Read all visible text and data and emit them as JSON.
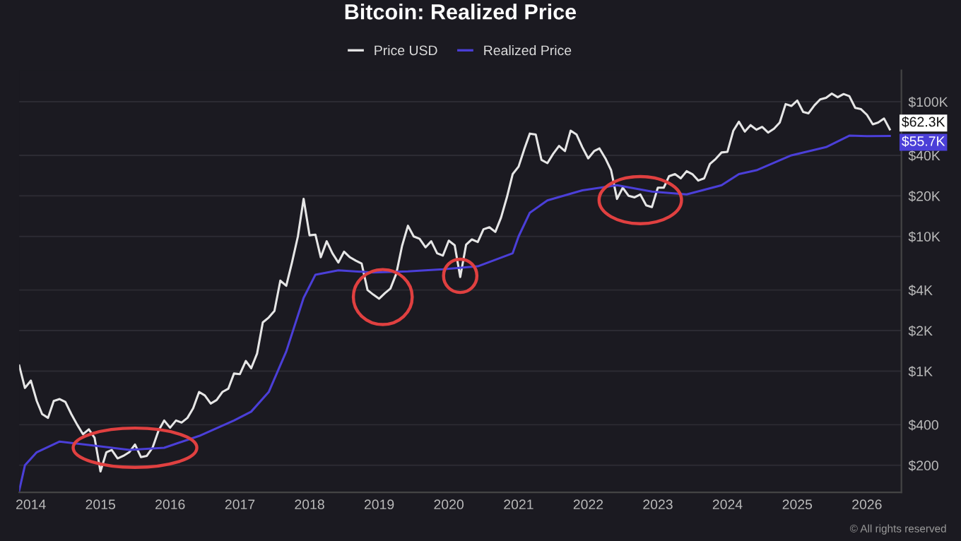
{
  "chart_data": {
    "type": "line",
    "title": "Bitcoin: Realized Price",
    "x": [
      "2013-11",
      "2013-12",
      "2014-01",
      "2014-02",
      "2014-03",
      "2014-04",
      "2014-05",
      "2014-06",
      "2014-07",
      "2014-08",
      "2014-09",
      "2014-10",
      "2014-11",
      "2014-12",
      "2015-01",
      "2015-02",
      "2015-03",
      "2015-04",
      "2015-05",
      "2015-06",
      "2015-07",
      "2015-08",
      "2015-09",
      "2015-10",
      "2015-11",
      "2015-12",
      "2016-01",
      "2016-02",
      "2016-03",
      "2016-04",
      "2016-05",
      "2016-06",
      "2016-07",
      "2016-08",
      "2016-09",
      "2016-10",
      "2016-11",
      "2016-12",
      "2017-01",
      "2017-02",
      "2017-03",
      "2017-04",
      "2017-05",
      "2017-06",
      "2017-07",
      "2017-08",
      "2017-09",
      "2017-10",
      "2017-11",
      "2017-12",
      "2018-01",
      "2018-02",
      "2018-03",
      "2018-04",
      "2018-05",
      "2018-06",
      "2018-07",
      "2018-08",
      "2018-09",
      "2018-10",
      "2018-11",
      "2018-12",
      "2019-01",
      "2019-02",
      "2019-03",
      "2019-04",
      "2019-05",
      "2019-06",
      "2019-07",
      "2019-08",
      "2019-09",
      "2019-10",
      "2019-11",
      "2019-12",
      "2020-01",
      "2020-02",
      "2020-03",
      "2020-04",
      "2020-05",
      "2020-06",
      "2020-07",
      "2020-08",
      "2020-09",
      "2020-10",
      "2020-11",
      "2020-12",
      "2021-01",
      "2021-02",
      "2021-03",
      "2021-04",
      "2021-05",
      "2021-06",
      "2021-07",
      "2021-08",
      "2021-09",
      "2021-10",
      "2021-11",
      "2021-12",
      "2022-01",
      "2022-02",
      "2022-03",
      "2022-04",
      "2022-05",
      "2022-06",
      "2022-07",
      "2022-08",
      "2022-09",
      "2022-10",
      "2022-11",
      "2022-12",
      "2023-01",
      "2023-02",
      "2023-03",
      "2023-04",
      "2023-05",
      "2023-06",
      "2023-07",
      "2023-08",
      "2023-09",
      "2023-10",
      "2023-11",
      "2023-12",
      "2024-01",
      "2024-02",
      "2024-03",
      "2024-04",
      "2024-05",
      "2024-06",
      "2024-07",
      "2024-08",
      "2024-09",
      "2024-10",
      "2024-11",
      "2024-12",
      "2025-01",
      "2025-02",
      "2025-03",
      "2025-04",
      "2025-05",
      "2025-06",
      "2025-07",
      "2025-08",
      "2025-09",
      "2025-10",
      "2025-11",
      "2025-12",
      "2026-01",
      "2026-02",
      "2026-03",
      "2026-04",
      "2026-05"
    ],
    "series": [
      {
        "name": "Price USD",
        "color": "#e6e6e6",
        "values": [
          1100,
          750,
          850,
          600,
          480,
          450,
          600,
          620,
          590,
          480,
          400,
          340,
          370,
          320,
          180,
          250,
          260,
          225,
          235,
          250,
          285,
          230,
          235,
          270,
          360,
          430,
          380,
          430,
          415,
          450,
          530,
          700,
          660,
          575,
          610,
          700,
          740,
          960,
          950,
          1190,
          1050,
          1350,
          2300,
          2500,
          2800,
          4700,
          4300,
          6400,
          10000,
          19000,
          10200,
          10300,
          7000,
          9200,
          7500,
          6400,
          7700,
          7000,
          6600,
          6300,
          4000,
          3700,
          3450,
          3800,
          4100,
          5300,
          8500,
          12000,
          10000,
          9600,
          8300,
          9200,
          7500,
          7200,
          9300,
          8600,
          5000,
          8700,
          9500,
          9100,
          11300,
          11700,
          10800,
          13800,
          19600,
          29000,
          33000,
          45000,
          58000,
          57000,
          37000,
          35000,
          41000,
          47000,
          43000,
          61000,
          57000,
          46000,
          38000,
          43000,
          45000,
          38000,
          31000,
          19000,
          23000,
          20000,
          19500,
          20500,
          17000,
          16500,
          23000,
          23000,
          28000,
          29000,
          27000,
          30500,
          29000,
          26000,
          27000,
          34500,
          37700,
          42000,
          42500,
          61000,
          71000,
          60000,
          67000,
          62000,
          65000,
          59000,
          63000,
          70000,
          96000,
          93000,
          102000,
          84000,
          82000,
          94000,
          104000,
          107000,
          115000,
          108000,
          114000,
          110000,
          90000,
          88000,
          80000,
          68000,
          70000,
          75000,
          62300
        ]
      },
      {
        "name": "Realized Price",
        "color": "#4b3fd8",
        "x": [
          "2013-11",
          "2013-12",
          "2014-02",
          "2014-06",
          "2014-12",
          "2015-06",
          "2015-12",
          "2016-06",
          "2016-12",
          "2017-03",
          "2017-06",
          "2017-09",
          "2017-12",
          "2018-02",
          "2018-06",
          "2018-12",
          "2019-06",
          "2019-12",
          "2020-06",
          "2020-12",
          "2021-01",
          "2021-03",
          "2021-06",
          "2021-12",
          "2022-06",
          "2022-12",
          "2023-06",
          "2023-12",
          "2024-03",
          "2024-06",
          "2024-12",
          "2025-06",
          "2025-10",
          "2026-01",
          "2026-05"
        ],
        "values": [
          130,
          200,
          250,
          300,
          280,
          260,
          270,
          330,
          430,
          500,
          700,
          1400,
          3500,
          5200,
          5600,
          5400,
          5500,
          5700,
          6000,
          7500,
          10000,
          15000,
          18500,
          22000,
          24000,
          21500,
          20500,
          24000,
          29000,
          31000,
          40000,
          46000,
          56000,
          55500,
          55700
        ]
      }
    ],
    "log": "y",
    "xlim": [
      "2013-11",
      "2026-07"
    ],
    "xticks": [
      {
        "value": "2014",
        "label": "2014"
      },
      {
        "value": "2015",
        "label": "2015"
      },
      {
        "value": "2016",
        "label": "2016"
      },
      {
        "value": "2017",
        "label": "2017"
      },
      {
        "value": "2018",
        "label": "2018"
      },
      {
        "value": "2019",
        "label": "2019"
      },
      {
        "value": "2020",
        "label": "2020"
      },
      {
        "value": "2021",
        "label": "2021"
      },
      {
        "value": "2022",
        "label": "2022"
      },
      {
        "value": "2023",
        "label": "2023"
      },
      {
        "value": "2024",
        "label": "2024"
      },
      {
        "value": "2025",
        "label": "2025"
      },
      {
        "value": "2026",
        "label": "2026"
      }
    ],
    "ylim": [
      126,
      171000
    ],
    "yticks": [
      {
        "value": 200,
        "label": "$200"
      },
      {
        "value": 400,
        "label": "$400"
      },
      {
        "value": 1000,
        "label": "$1K"
      },
      {
        "value": 2000,
        "label": "$2K"
      },
      {
        "value": 4000,
        "label": "$4K"
      },
      {
        "value": 10000,
        "label": "$10K"
      },
      {
        "value": 20000,
        "label": "$20K"
      },
      {
        "value": 40000,
        "label": "$40K"
      },
      {
        "value": 100000,
        "label": "$100K"
      }
    ],
    "grid": "y",
    "legend": "top",
    "annotations": [
      {
        "text": "$62.3K",
        "x": "2026-05",
        "y": 62300
      },
      {
        "text": "$55.7K",
        "x": "2026-05",
        "y": 55700
      },
      "© All rights reserved"
    ]
  }
}
